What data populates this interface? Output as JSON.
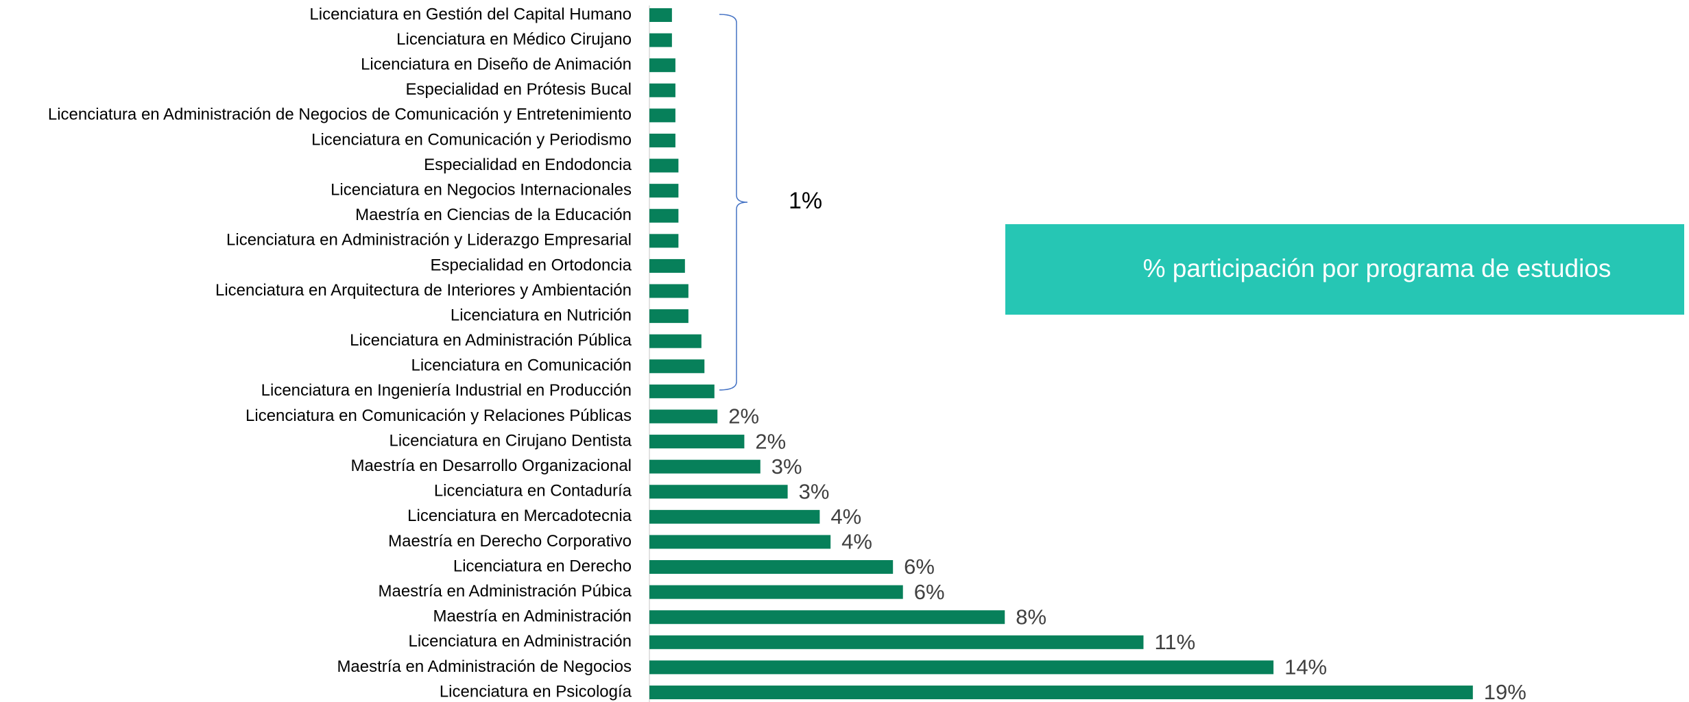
{
  "chart_data": {
    "type": "bar",
    "orientation": "horizontal",
    "title": "% participación por programa de estudios",
    "categories": [
      "Licenciatura en Gestión del Capital Humano",
      "Licenciatura en Médico Cirujano",
      "Licenciatura en Diseño de Animación",
      "Especialidad en Prótesis Bucal",
      "Licenciatura en Administración de Negocios de Comunicación y Entretenimiento",
      "Licenciatura en Comunicación y Periodismo",
      "Especialidad en Endodoncia",
      "Licenciatura en Negocios Internacionales",
      "Maestría en Ciencias de la Educación",
      "Licenciatura en Administración y Liderazgo Empresarial",
      "Especialidad en Ortodoncia",
      "Licenciatura en Arquitectura de Interiores y Ambientación",
      "Licenciatura en Nutrición",
      "Licenciatura en Administración Pública",
      "Licenciatura en Comunicación",
      "Licenciatura en Ingeniería Industrial en Producción",
      "Licenciatura en Comunicación y Relaciones Públicas",
      "Licenciatura en Cirujano Dentista",
      "Maestría en Desarrollo Organizacional",
      "Licenciatura en Contaduría",
      "Licenciatura en Mercadotecnia",
      "Maestría en Derecho Corporativo",
      "Licenciatura en Derecho",
      "Maestría en Administración Púbica",
      "Maestría en Administración",
      "Licenciatura en Administración",
      "Maestría en Administración de Negocios",
      "Licenciatura en Psicología"
    ],
    "values": [
      0.52,
      0.52,
      0.6,
      0.6,
      0.6,
      0.6,
      0.67,
      0.67,
      0.67,
      0.67,
      0.82,
      0.9,
      0.9,
      1.2,
      1.27,
      1.5,
      1.57,
      2.19,
      2.56,
      3.19,
      3.93,
      4.18,
      5.62,
      5.85,
      8.2,
      11.4,
      14.4,
      19.0
    ],
    "value_labels": [
      null,
      null,
      null,
      null,
      null,
      null,
      null,
      null,
      null,
      null,
      null,
      null,
      null,
      null,
      null,
      null,
      "2%",
      "2%",
      "3%",
      "3%",
      "4%",
      "4%",
      "6%",
      "6%",
      "8%",
      "11%",
      "14%",
      "19%"
    ],
    "color": "#07805a",
    "annotations": [
      {
        "text": "1%",
        "from": 0,
        "to": 15
      }
    ]
  }
}
